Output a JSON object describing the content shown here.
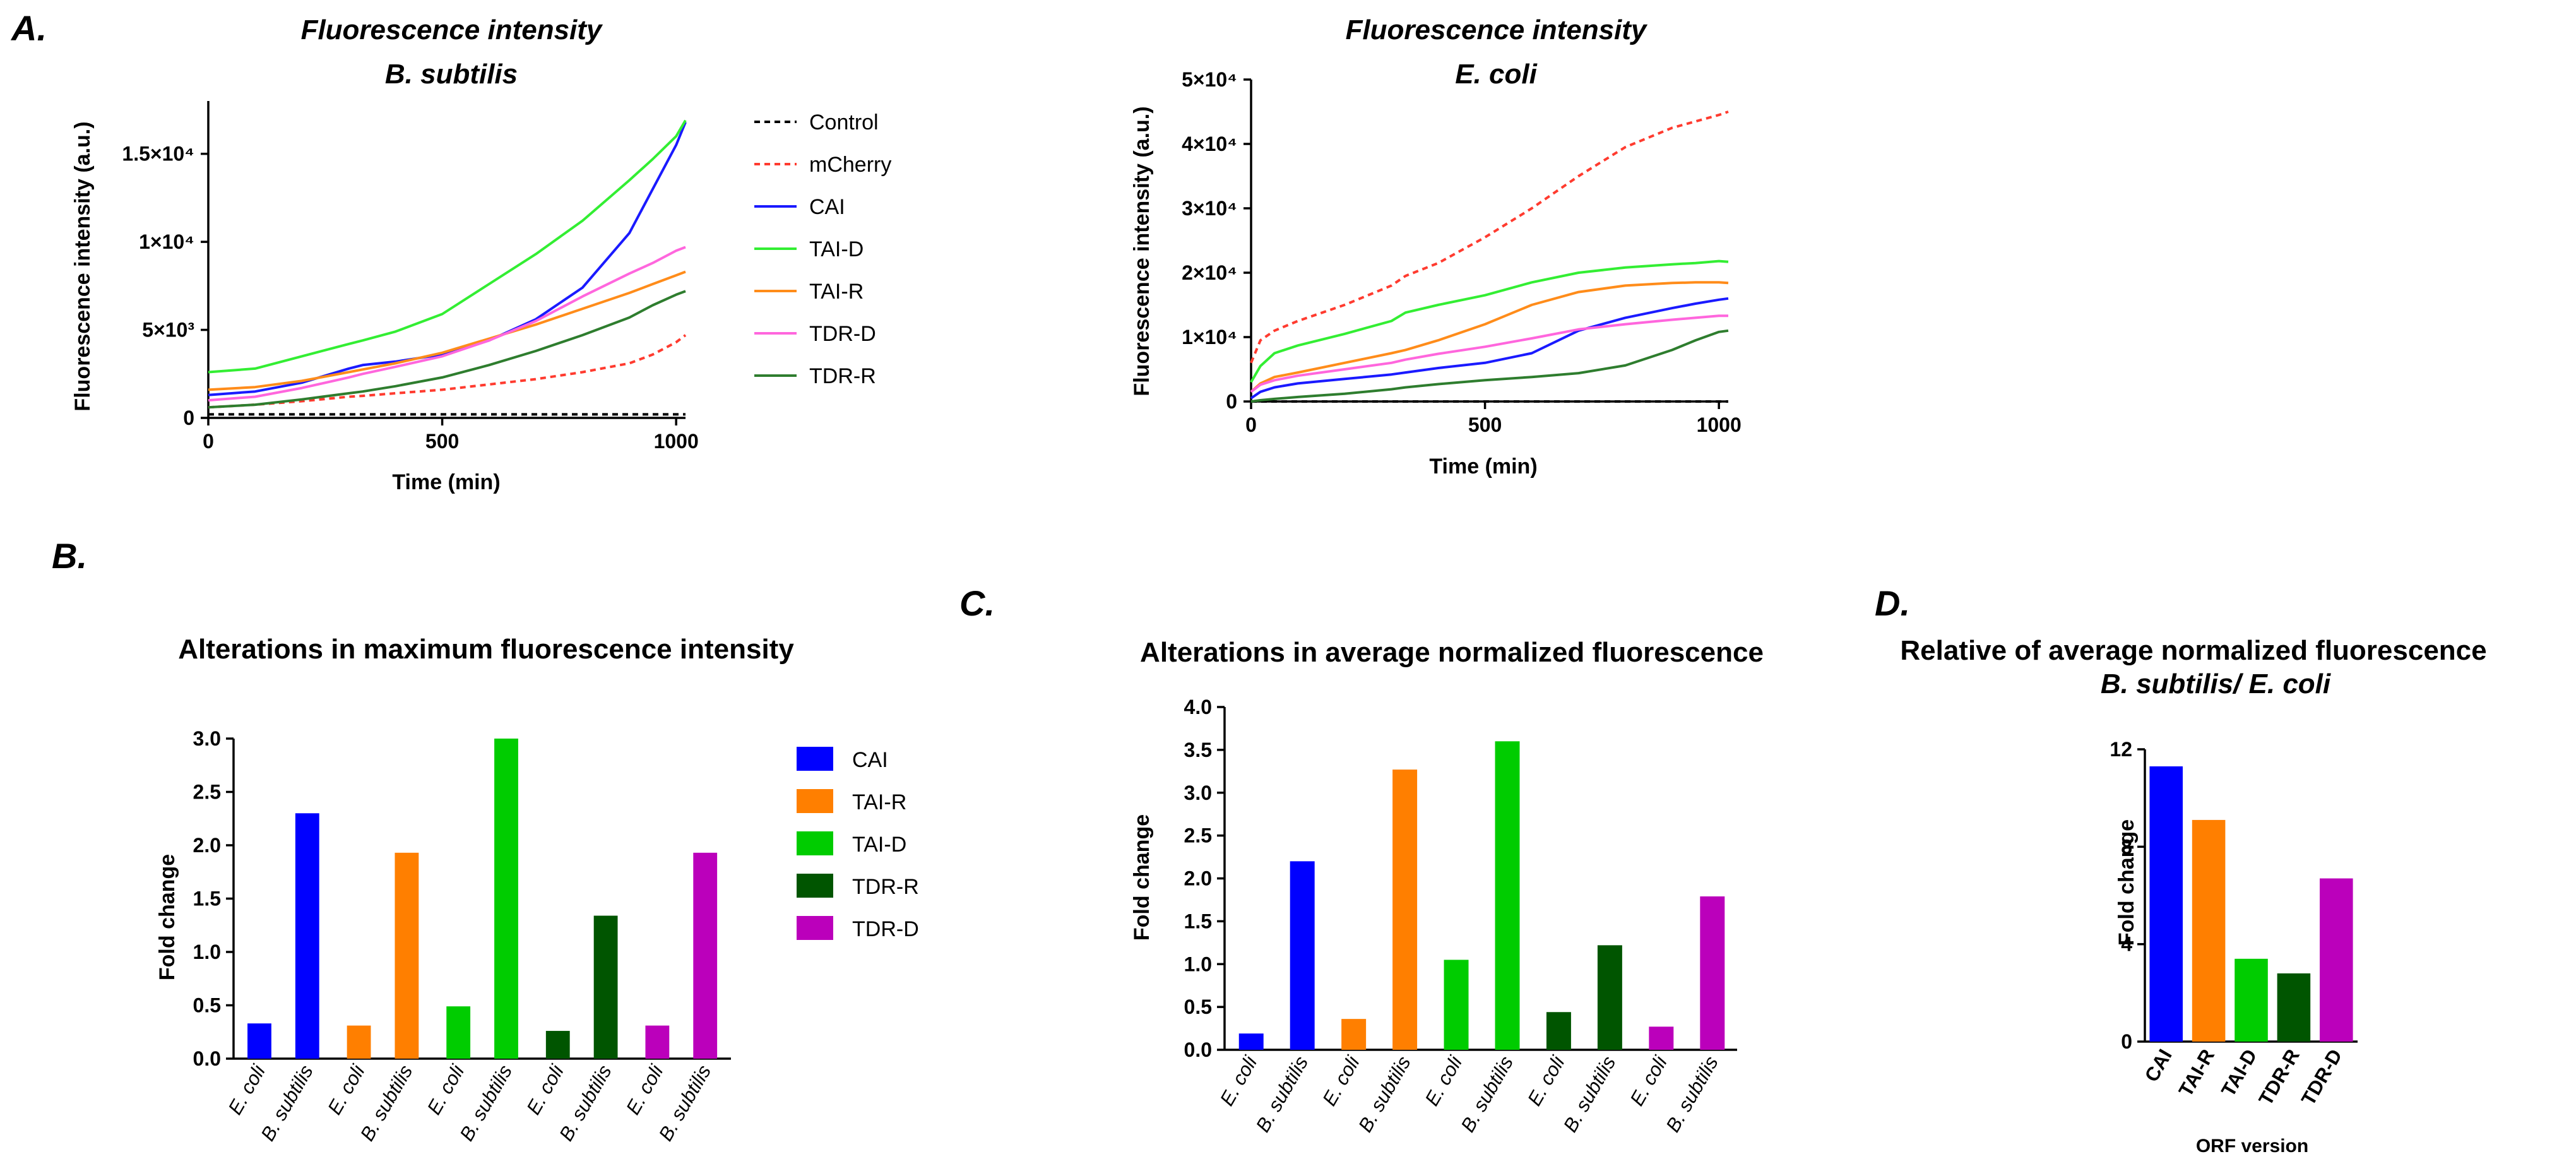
{
  "panels": {
    "a": {
      "label": "A."
    },
    "b": {
      "label": "B."
    },
    "c": {
      "label": "C."
    },
    "d": {
      "label": "D."
    }
  },
  "colors": {
    "control": "#000000",
    "mcherry": "#ff3b2f",
    "cai": "#1a1aff",
    "tai_d": "#33ee33",
    "tai_r": "#ff8c1a",
    "tdr_d": "#ff66dd",
    "tdr_r": "#2e7d2e",
    "bar_cai": "#0000ff",
    "bar_tai_r": "#ff7f00",
    "bar_tai_d": "#00cc00",
    "bar_tdr_r": "#005500",
    "bar_tdr_d": "#bb00bb"
  },
  "chart_data": [
    {
      "id": "a1",
      "type": "line",
      "title": "Fluorescence intensity",
      "subtitle": "B. subtilis",
      "xlabel": "Time (min)",
      "ylabel": "Fluorescence intensity (a.u.)",
      "xlim": [
        0,
        1020
      ],
      "ylim": [
        0,
        18000
      ],
      "xticks": [
        0,
        500,
        1000
      ],
      "xtick_labels": [
        "0",
        "500",
        "1000"
      ],
      "yticks": [
        0,
        5000,
        10000,
        15000
      ],
      "ytick_labels": [
        "0",
        "5×10³",
        "1×10⁴",
        "1.5×10⁴"
      ],
      "legend": [
        "Control",
        "mCherry",
        "CAI",
        "TAI-D",
        "TAI-R",
        "TDR-D",
        "TDR-R"
      ],
      "x": [
        0,
        100,
        200,
        300,
        330,
        400,
        500,
        600,
        700,
        800,
        900,
        950,
        1000,
        1020
      ],
      "series": [
        {
          "name": "Control",
          "key": "control",
          "dashed": true,
          "values": [
            200,
            200,
            200,
            200,
            200,
            200,
            200,
            200,
            200,
            200,
            200,
            200,
            200,
            200
          ]
        },
        {
          "name": "mCherry",
          "key": "mcherry",
          "dashed": true,
          "values": [
            600,
            750,
            950,
            1200,
            1250,
            1400,
            1600,
            1900,
            2200,
            2600,
            3100,
            3600,
            4300,
            4700
          ]
        },
        {
          "name": "CAI",
          "key": "cai",
          "dashed": false,
          "values": [
            1300,
            1500,
            2000,
            2800,
            3000,
            3200,
            3600,
            4400,
            5600,
            7400,
            10500,
            13000,
            15500,
            16800
          ]
        },
        {
          "name": "TAI-D",
          "key": "tai_d",
          "dashed": false,
          "values": [
            2600,
            2800,
            3500,
            4200,
            4400,
            4900,
            5900,
            7600,
            9300,
            11200,
            13500,
            14700,
            16000,
            16900
          ]
        },
        {
          "name": "TAI-R",
          "key": "tai_r",
          "dashed": false,
          "values": [
            1600,
            1750,
            2100,
            2600,
            2750,
            3100,
            3700,
            4500,
            5300,
            6200,
            7100,
            7600,
            8100,
            8300
          ]
        },
        {
          "name": "TDR-D",
          "key": "tdr_d",
          "dashed": false,
          "values": [
            1000,
            1200,
            1700,
            2300,
            2500,
            2900,
            3500,
            4400,
            5500,
            6900,
            8200,
            8800,
            9500,
            9700
          ]
        },
        {
          "name": "TDR-R",
          "key": "tdr_r",
          "dashed": false,
          "values": [
            600,
            750,
            1050,
            1400,
            1500,
            1800,
            2300,
            3000,
            3800,
            4700,
            5700,
            6400,
            7000,
            7200
          ]
        }
      ]
    },
    {
      "id": "a2",
      "type": "line",
      "title": "Fluorescence intensity",
      "subtitle": "E. coli",
      "xlabel": "Time (min)",
      "ylabel": "Fluorescence intensity (a.u.)",
      "xlim": [
        0,
        1020
      ],
      "ylim": [
        0,
        50000
      ],
      "xticks": [
        0,
        500,
        1000
      ],
      "xtick_labels": [
        "0",
        "500",
        "1000"
      ],
      "yticks": [
        0,
        10000,
        20000,
        30000,
        40000,
        50000
      ],
      "ytick_labels": [
        "0",
        "1×10⁴",
        "2×10⁴",
        "3×10⁴",
        "4×10⁴",
        "5×10⁴"
      ],
      "x": [
        0,
        20,
        50,
        100,
        200,
        300,
        330,
        400,
        500,
        600,
        700,
        800,
        900,
        950,
        1000,
        1020
      ],
      "series": [
        {
          "name": "Control",
          "key": "control",
          "dashed": true,
          "values": [
            0,
            0,
            0,
            0,
            0,
            0,
            0,
            0,
            0,
            0,
            0,
            0,
            0,
            0,
            0,
            0
          ]
        },
        {
          "name": "mCherry",
          "key": "mcherry",
          "dashed": true,
          "values": [
            6000,
            9500,
            11000,
            12500,
            15000,
            18000,
            19500,
            21500,
            25500,
            30000,
            35000,
            39500,
            42500,
            43500,
            44500,
            45000
          ]
        },
        {
          "name": "CAI",
          "key": "cai",
          "dashed": false,
          "values": [
            500,
            1500,
            2200,
            2800,
            3500,
            4200,
            4500,
            5200,
            6000,
            7500,
            11000,
            13000,
            14500,
            15200,
            15800,
            16000
          ]
        },
        {
          "name": "TAI-D",
          "key": "tai_d",
          "dashed": false,
          "values": [
            3000,
            5500,
            7500,
            8700,
            10500,
            12500,
            13800,
            15000,
            16500,
            18500,
            20000,
            20800,
            21300,
            21500,
            21800,
            21700
          ]
        },
        {
          "name": "TAI-R",
          "key": "tai_r",
          "dashed": false,
          "values": [
            1500,
            2800,
            3800,
            4500,
            6000,
            7500,
            8000,
            9500,
            12000,
            15000,
            17000,
            18000,
            18400,
            18500,
            18500,
            18400
          ]
        },
        {
          "name": "TDR-D",
          "key": "tdr_d",
          "dashed": false,
          "values": [
            1500,
            2600,
            3300,
            4000,
            5000,
            6000,
            6500,
            7400,
            8500,
            9800,
            11200,
            12000,
            12700,
            13000,
            13300,
            13300
          ]
        },
        {
          "name": "TDR-R",
          "key": "tdr_r",
          "dashed": false,
          "values": [
            0,
            200,
            400,
            700,
            1200,
            1900,
            2200,
            2700,
            3300,
            3800,
            4400,
            5600,
            8000,
            9500,
            10800,
            11000
          ]
        }
      ]
    },
    {
      "id": "b",
      "type": "bar",
      "title": "Alterations in maximum fluorescence intensity",
      "ylabel": "Fold change",
      "ylim": [
        0,
        3.0
      ],
      "yticks": [
        0,
        0.5,
        1.0,
        1.5,
        2.0,
        2.5,
        3.0
      ],
      "ytick_labels": [
        "0.0",
        "0.5",
        "1.0",
        "1.5",
        "2.0",
        "2.5",
        "3.0"
      ],
      "legend": [
        {
          "label": "CAI",
          "key": "bar_cai"
        },
        {
          "label": "TAI-R",
          "key": "bar_tai_r"
        },
        {
          "label": "TAI-D",
          "key": "bar_tai_d"
        },
        {
          "label": "TDR-R",
          "key": "bar_tdr_r"
        },
        {
          "label": "TDR-D",
          "key": "bar_tdr_d"
        }
      ],
      "groups": [
        {
          "key": "bar_cai",
          "bars": [
            {
              "category": "E. coli",
              "value": 0.33
            },
            {
              "category": "B. subtilis",
              "value": 2.3
            }
          ]
        },
        {
          "key": "bar_tai_r",
          "bars": [
            {
              "category": "E. coli",
              "value": 0.31
            },
            {
              "category": "B. subtilis",
              "value": 1.93
            }
          ]
        },
        {
          "key": "bar_tai_d",
          "bars": [
            {
              "category": "E. coli",
              "value": 0.49
            },
            {
              "category": "B. subtilis",
              "value": 3.0
            }
          ]
        },
        {
          "key": "bar_tdr_r",
          "bars": [
            {
              "category": "E. coli",
              "value": 0.26
            },
            {
              "category": "B. subtilis",
              "value": 1.34
            }
          ]
        },
        {
          "key": "bar_tdr_d",
          "bars": [
            {
              "category": "E. coli",
              "value": 0.31
            },
            {
              "category": "B. subtilis",
              "value": 1.93
            }
          ]
        }
      ]
    },
    {
      "id": "c",
      "type": "bar",
      "title": "Alterations in average normalized fluorescence",
      "ylabel": "Fold change",
      "ylim": [
        0,
        4.0
      ],
      "yticks": [
        0,
        0.5,
        1.0,
        1.5,
        2.0,
        2.5,
        3.0,
        3.5,
        4.0
      ],
      "ytick_labels": [
        "0.0",
        "0.5",
        "1.0",
        "1.5",
        "2.0",
        "2.5",
        "3.0",
        "3.5",
        "4.0"
      ],
      "groups": [
        {
          "key": "bar_cai",
          "bars": [
            {
              "category": "E. coli",
              "value": 0.19
            },
            {
              "category": "B. subtilis",
              "value": 2.2
            }
          ]
        },
        {
          "key": "bar_tai_r",
          "bars": [
            {
              "category": "E. coli",
              "value": 0.36
            },
            {
              "category": "B. subtilis",
              "value": 3.27
            }
          ]
        },
        {
          "key": "bar_tai_d",
          "bars": [
            {
              "category": "E. coli",
              "value": 1.05
            },
            {
              "category": "B. subtilis",
              "value": 3.6
            }
          ]
        },
        {
          "key": "bar_tdr_r",
          "bars": [
            {
              "category": "E. coli",
              "value": 0.44
            },
            {
              "category": "B. subtilis",
              "value": 1.22
            }
          ]
        },
        {
          "key": "bar_tdr_d",
          "bars": [
            {
              "category": "E. coli",
              "value": 0.27
            },
            {
              "category": "B. subtilis",
              "value": 1.79
            }
          ]
        }
      ]
    },
    {
      "id": "d",
      "type": "bar",
      "title": "Relative of average normalized fluorescence",
      "subtitle": "B. subtilis/ E. coli",
      "xlabel": "ORF version",
      "ylabel": "Fold change",
      "ylim": [
        0,
        12
      ],
      "yticks": [
        0,
        4,
        8,
        12
      ],
      "ytick_labels": [
        "0",
        "4",
        "8",
        "12"
      ],
      "categories": [
        "CAI",
        "TAI-R",
        "TAI-D",
        "TDR-R",
        "TDR-D"
      ],
      "keys": [
        "bar_cai",
        "bar_tai_r",
        "bar_tai_d",
        "bar_tdr_r",
        "bar_tdr_d"
      ],
      "values": [
        11.3,
        9.1,
        3.4,
        2.8,
        6.7
      ]
    }
  ]
}
